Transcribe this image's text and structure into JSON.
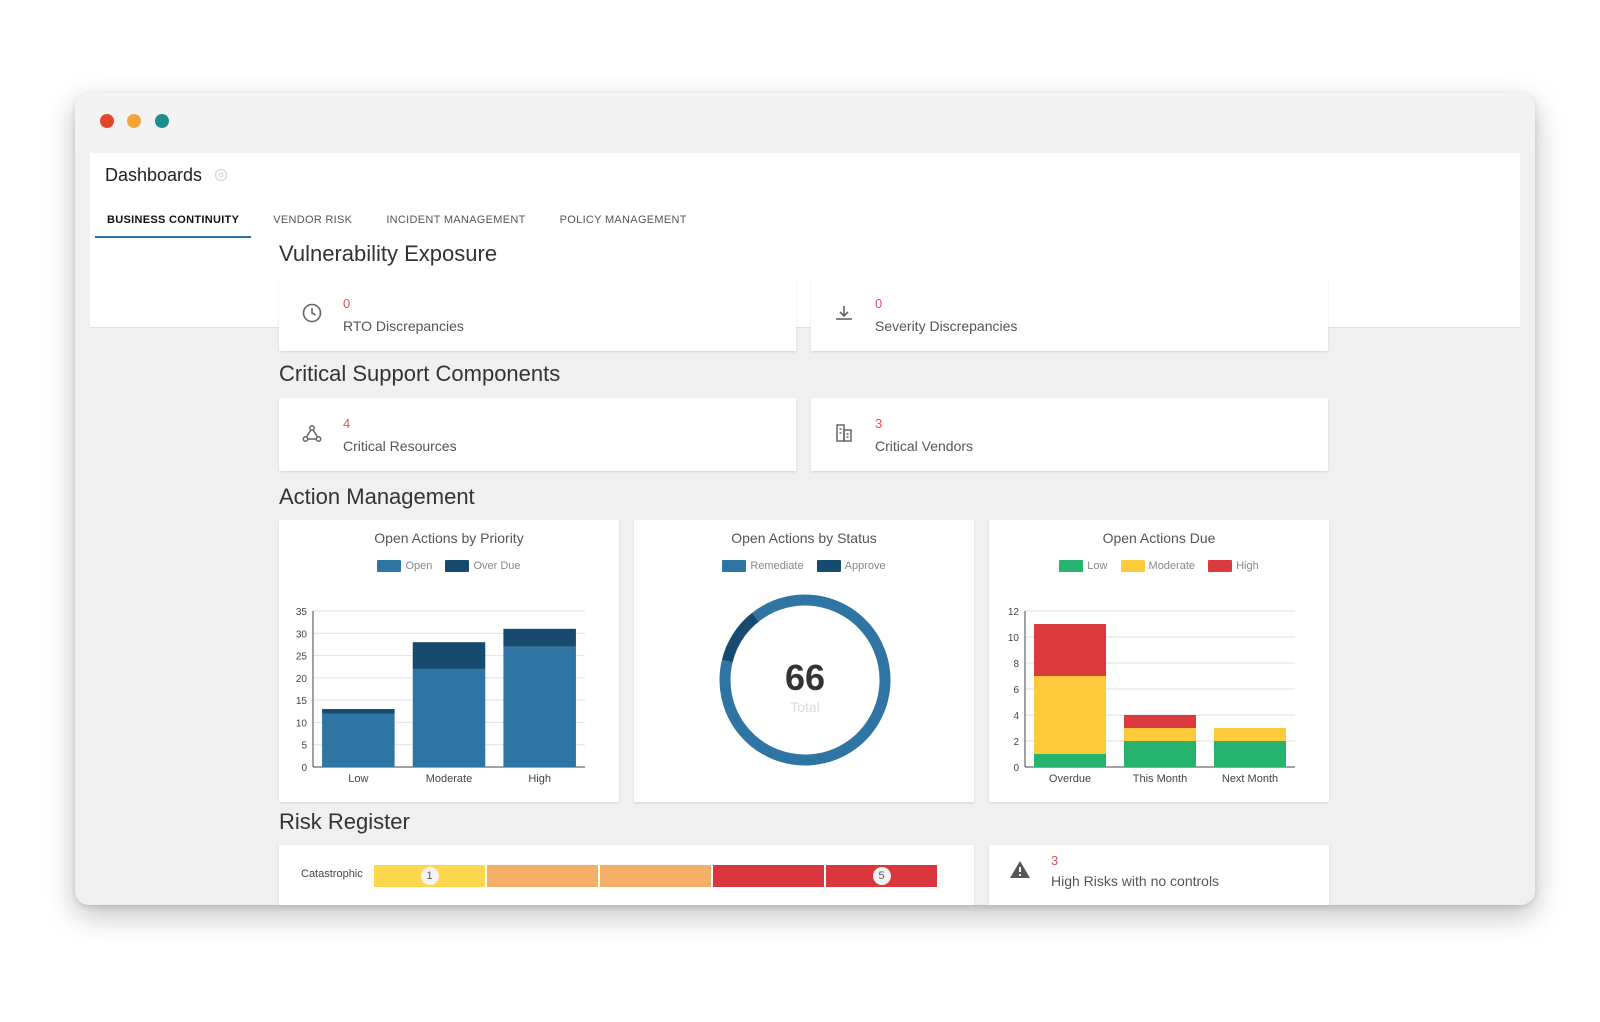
{
  "app": {
    "title": "Dashboards",
    "colors": {
      "accent": "#2e73a6",
      "danger": "#e0534f"
    }
  },
  "tabs": [
    {
      "label": "BUSINESS CONTINUITY",
      "active": true
    },
    {
      "label": "VENDOR RISK",
      "active": false
    },
    {
      "label": "INCIDENT MANAGEMENT",
      "active": false
    },
    {
      "label": "POLICY MANAGEMENT",
      "active": false
    }
  ],
  "sections": {
    "vulnerability": {
      "title": "Vulnerability Exposure",
      "cards": [
        {
          "value": "0",
          "label": "RTO Discrepancies",
          "icon": "clock-icon"
        },
        {
          "value": "0",
          "label": "Severity Discrepancies",
          "icon": "download-icon"
        }
      ]
    },
    "critical": {
      "title": "Critical Support Components",
      "cards": [
        {
          "value": "4",
          "label": "Critical Resources",
          "icon": "network-icon"
        },
        {
          "value": "3",
          "label": "Critical Vendors",
          "icon": "building-icon"
        }
      ]
    },
    "action": {
      "title": "Action Management"
    },
    "risk": {
      "title": "Risk Register",
      "heatmap_row_label": "Catastrophic",
      "heatmap_cells": [
        {
          "color": "#fdd84e",
          "badge": "1"
        },
        {
          "color": "#f3b066",
          "badge": ""
        },
        {
          "color": "#f3b066",
          "badge": ""
        },
        {
          "color": "#d9363e",
          "badge": ""
        },
        {
          "color": "#d9363e",
          "badge": "5"
        }
      ],
      "alert": {
        "value": "3",
        "label": "High Risks with no controls",
        "icon": "warning-icon"
      }
    }
  },
  "chart_data": [
    {
      "type": "bar",
      "title": "Open Actions by Priority",
      "stacked": true,
      "categories": [
        "Low",
        "Moderate",
        "High"
      ],
      "series": [
        {
          "name": "Open",
          "color": "#2e75a3",
          "values": [
            12,
            22,
            27
          ]
        },
        {
          "name": "Over Due",
          "color": "#164a6e",
          "values": [
            1,
            6,
            4
          ]
        }
      ],
      "ylim": [
        0,
        35
      ],
      "yticks": [
        0,
        5,
        10,
        15,
        20,
        25,
        30,
        35
      ]
    },
    {
      "type": "pie",
      "title": "Open Actions by Status",
      "donut": true,
      "series": [
        {
          "name": "Remediate",
          "color": "#2e75a3",
          "value": 59
        },
        {
          "name": "Approve",
          "color": "#164a6e",
          "value": 7
        }
      ],
      "center_value": "66",
      "center_label": "Total"
    },
    {
      "type": "bar",
      "title": "Open Actions Due",
      "stacked": true,
      "categories": [
        "Overdue",
        "This Month",
        "Next Month"
      ],
      "series": [
        {
          "name": "Low",
          "color": "#26b36d",
          "values": [
            1,
            2,
            2
          ]
        },
        {
          "name": "Moderate",
          "color": "#fcca3a",
          "values": [
            6,
            1,
            1
          ]
        },
        {
          "name": "High",
          "color": "#db3a3f",
          "values": [
            4,
            1,
            0
          ]
        }
      ],
      "ylim": [
        0,
        12
      ],
      "yticks": [
        0,
        2,
        4,
        6,
        8,
        10,
        12
      ]
    }
  ]
}
